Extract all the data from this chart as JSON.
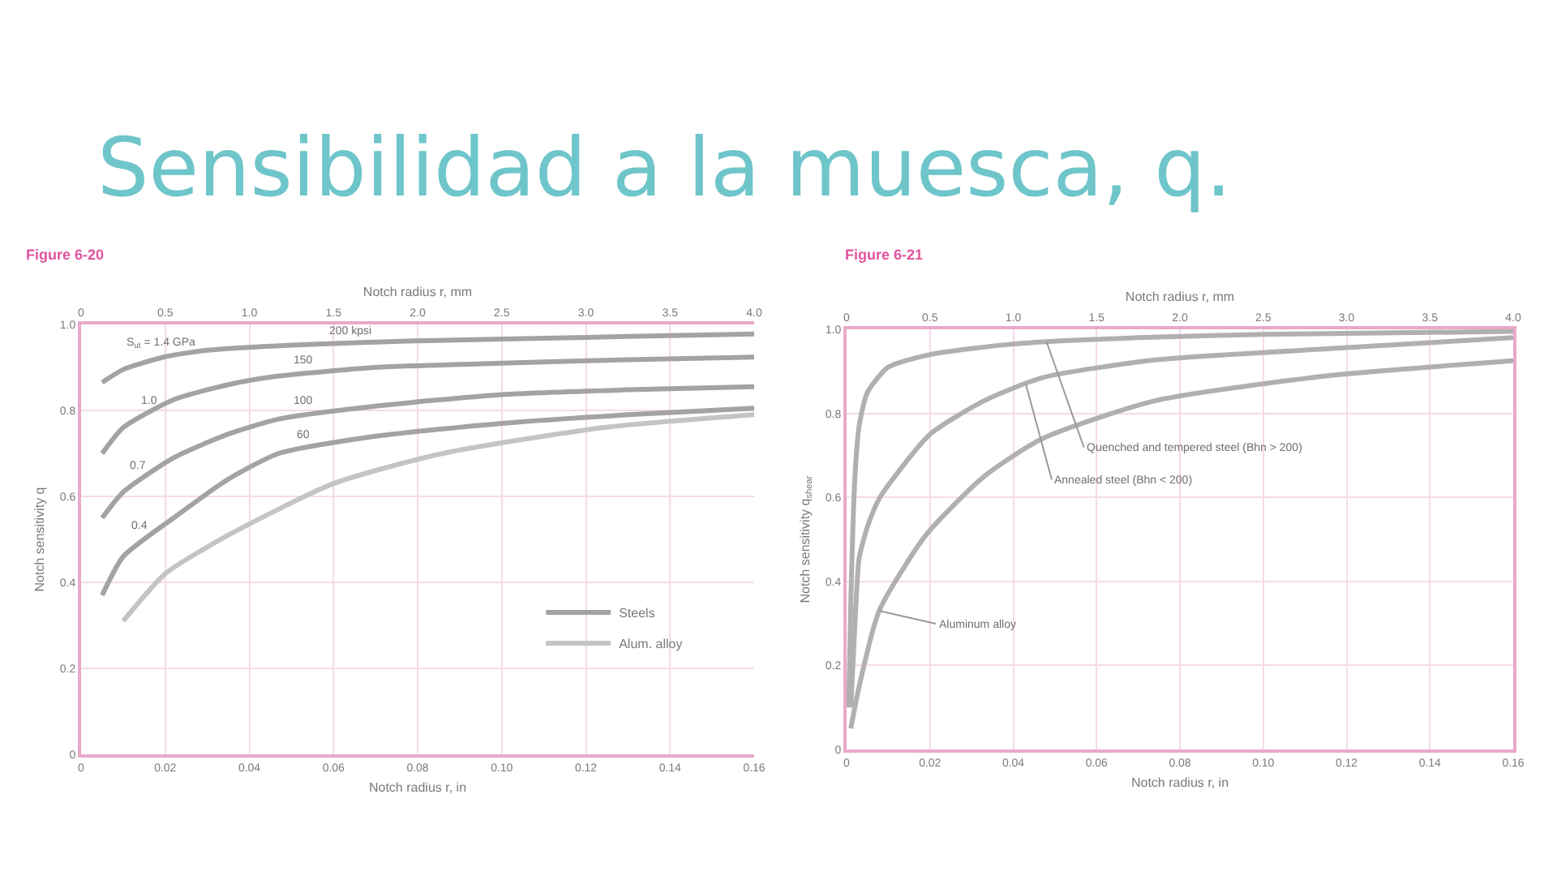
{
  "chart_data": [
    {
      "type": "line",
      "title": "Sensibilidad a la muesca, q.",
      "subtitle": "Figure 6-20",
      "xlabel": "Notch radius r, in",
      "x2label": "Notch radius r, mm",
      "ylabel": "Notch sensitivity q",
      "xlim": [
        0,
        0.16
      ],
      "xticks": [
        0,
        0.02,
        0.04,
        0.06,
        0.08,
        {
          "value": 0.1,
          "label": "0.10"
        },
        0.12,
        0.14,
        0.16
      ],
      "x2lim": [
        0,
        4
      ],
      "x2ticks": [
        0,
        0.5,
        {
          "value": 1,
          "label": "1.0"
        },
        1.5,
        {
          "value": 2,
          "label": "2.0"
        },
        2.5,
        {
          "value": 3,
          "label": "3.0"
        },
        3.5,
        {
          "value": 4,
          "label": "4.0"
        }
      ],
      "ylim": [
        0,
        1
      ],
      "yticks": [
        0,
        0.2,
        0.4,
        0.6,
        0.8,
        {
          "value": 1,
          "label": "1.0"
        }
      ],
      "grid": true,
      "legend": "bottom right",
      "series": [
        {
          "name": "Steels",
          "color": "#a3a3a3",
          "x": [
            0.005,
            0.01,
            0.02,
            0.03,
            0.05,
            0.08,
            0.12,
            0.16
          ],
          "values": [
            0.865,
            0.895,
            0.925,
            0.94,
            0.952,
            0.962,
            0.97,
            0.978
          ]
        },
        {
          "color": "#a3a3a3",
          "x": [
            0.005,
            0.01,
            0.022,
            0.035,
            0.047,
            0.07,
            0.1,
            0.13,
            0.16
          ],
          "values": [
            0.7,
            0.76,
            0.825,
            0.86,
            0.88,
            0.9,
            0.91,
            0.918,
            0.924
          ]
        },
        {
          "color": "#a3a3a3",
          "x": [
            0.005,
            0.01,
            0.022,
            0.035,
            0.047,
            0.07,
            0.1,
            0.13,
            0.16
          ],
          "values": [
            0.55,
            0.61,
            0.69,
            0.745,
            0.78,
            0.81,
            0.837,
            0.848,
            0.855
          ]
        },
        {
          "color": "#a3a3a3",
          "x": [
            0.005,
            0.01,
            0.022,
            0.035,
            0.047,
            0.07,
            0.1,
            0.13,
            0.16
          ],
          "values": [
            0.37,
            0.46,
            0.55,
            0.64,
            0.7,
            0.74,
            0.77,
            0.79,
            0.805
          ]
        },
        {
          "name": "Alum. alloy",
          "color": "#c4c4c4",
          "x": [
            0.01,
            0.02,
            0.035,
            0.06,
            0.086,
            0.124,
            0.16
          ],
          "values": [
            0.31,
            0.42,
            0.51,
            0.63,
            0.7,
            0.76,
            0.79
          ]
        }
      ],
      "annotations": [
        {
          "text": "S$_{ut}$ = 1.4 GPa",
          "x": 0.019,
          "y": 0.923
        },
        {
          "text": "1.0",
          "x": 0.016,
          "y": 0.79
        },
        {
          "text": "0.7",
          "x": 0.0135,
          "y": 0.64
        },
        {
          "text": "0.4",
          "x": 0.014,
          "y": 0.5
        },
        {
          "text": "200 kpsi",
          "x": 0.064,
          "y": 0.956
        },
        {
          "text": "150",
          "x": 0.053,
          "y": 0.885
        },
        {
          "text": "100",
          "x": 0.053,
          "y": 0.79
        },
        {
          "text": "60",
          "x": 0.053,
          "y": 0.71
        }
      ]
    },
    {
      "type": "line",
      "subtitle": "Figure 6-21",
      "xlabel": "Notch radius r, in",
      "x2label": "Notch radius r, mm",
      "ylabel": "Notch sensitivity q$_{shear}$",
      "xlim": [
        0,
        0.16
      ],
      "xticks": [
        0,
        0.02,
        0.04,
        0.06,
        0.08,
        {
          "value": 0.1,
          "label": "0.10"
        },
        0.12,
        0.14,
        0.16
      ],
      "x2lim": [
        0,
        4
      ],
      "x2ticks": [
        0,
        0.5,
        {
          "value": 1,
          "label": "1.0"
        },
        1.5,
        {
          "value": 2,
          "label": "2.0"
        },
        2.5,
        {
          "value": 3,
          "label": "3.0"
        },
        3.5,
        {
          "value": 4,
          "label": "4.0"
        }
      ],
      "ylim": [
        0,
        1
      ],
      "yticks": [
        0,
        0.2,
        0.4,
        0.6,
        0.8,
        {
          "value": 1,
          "label": "1.0"
        }
      ],
      "grid": true,
      "series": [
        {
          "color": "#b0b0b0",
          "x": [
            0.0005,
            0.001,
            0.002,
            0.003,
            0.005,
            0.01,
            0.02,
            0.04,
            0.07,
            0.1,
            0.16
          ],
          "values": [
            0.1,
            0.35,
            0.65,
            0.77,
            0.85,
            0.91,
            0.94,
            0.965,
            0.98,
            0.988,
            0.995
          ]
        },
        {
          "color": "#b0b0b0",
          "x": [
            0.001,
            0.002,
            0.003,
            0.005,
            0.008,
            0.02,
            0.033,
            0.047,
            0.074,
            0.116,
            0.16
          ],
          "values": [
            0.1,
            0.3,
            0.455,
            0.53,
            0.6,
            0.75,
            0.83,
            0.885,
            0.927,
            0.954,
            0.98
          ]
        },
        {
          "color": "#b0b0b0",
          "x": [
            0.001,
            0.003,
            0.0078,
            0.019,
            0.033,
            0.047,
            0.074,
            0.116,
            0.16
          ],
          "values": [
            0.05,
            0.15,
            0.33,
            0.51,
            0.65,
            0.74,
            0.83,
            0.89,
            0.925
          ]
        }
      ],
      "annotations": [
        {
          "text": "Quenched and tempered steel (Bhn > 200)",
          "x": 0.048,
          "y": 0.97
        },
        {
          "text": "Annealed steel (Bhn < 200)",
          "x": 0.043,
          "y": 0.87
        },
        {
          "text": "Aluminum alloy",
          "x": 0.0078,
          "y": 0.33
        }
      ]
    }
  ]
}
